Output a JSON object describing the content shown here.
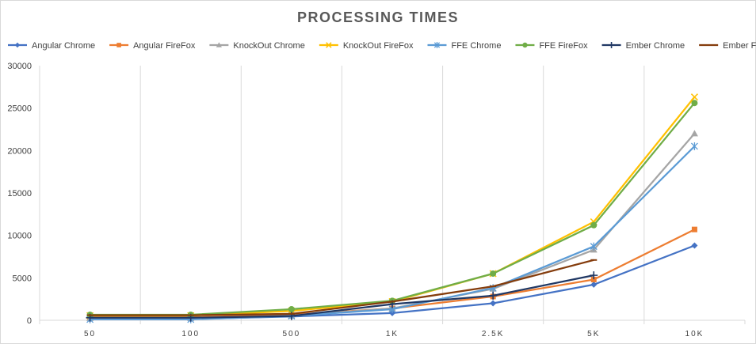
{
  "chart_data": {
    "type": "line",
    "title": "PROCESSING TIMES",
    "xlabel": "",
    "ylabel": "",
    "categories": [
      "50",
      "100",
      "500",
      "1K",
      "2.5K",
      "5K",
      "10K"
    ],
    "ylim": [
      0,
      30000
    ],
    "yticks": [
      0,
      5000,
      10000,
      15000,
      20000,
      25000,
      30000
    ],
    "grid": "vertical",
    "legend_position": "top",
    "series": [
      {
        "name": "Angular Chrome",
        "color": "#4472C4",
        "marker": "diamond",
        "values": [
          150,
          150,
          450,
          850,
          2000,
          4200,
          8800
        ]
      },
      {
        "name": "Angular FireFox",
        "color": "#ED7D31",
        "marker": "square",
        "values": [
          350,
          350,
          650,
          1400,
          2800,
          4800,
          10700
        ]
      },
      {
        "name": "KnockOut Chrome",
        "color": "#A5A5A5",
        "marker": "triangle",
        "values": [
          250,
          250,
          550,
          1400,
          3700,
          8300,
          22000
        ]
      },
      {
        "name": "KnockOut FireFox",
        "color": "#FFC000",
        "marker": "x",
        "values": [
          550,
          550,
          1100,
          2200,
          5500,
          11600,
          26300
        ]
      },
      {
        "name": "FFE Chrome",
        "color": "#5B9BD5",
        "marker": "asterisk",
        "values": [
          100,
          100,
          500,
          1300,
          3800,
          8700,
          20500
        ]
      },
      {
        "name": "FFE FireFox",
        "color": "#70AD47",
        "marker": "circle",
        "values": [
          650,
          650,
          1300,
          2300,
          5500,
          11200,
          25600
        ]
      },
      {
        "name": "Ember Chrome",
        "color": "#203864",
        "marker": "plus",
        "values": [
          300,
          300,
          500,
          1900,
          2900,
          5300,
          null
        ]
      },
      {
        "name": "Ember FireFox",
        "color": "#843C0C",
        "marker": "dash",
        "values": [
          600,
          600,
          750,
          2200,
          4000,
          7100,
          null
        ]
      }
    ]
  }
}
